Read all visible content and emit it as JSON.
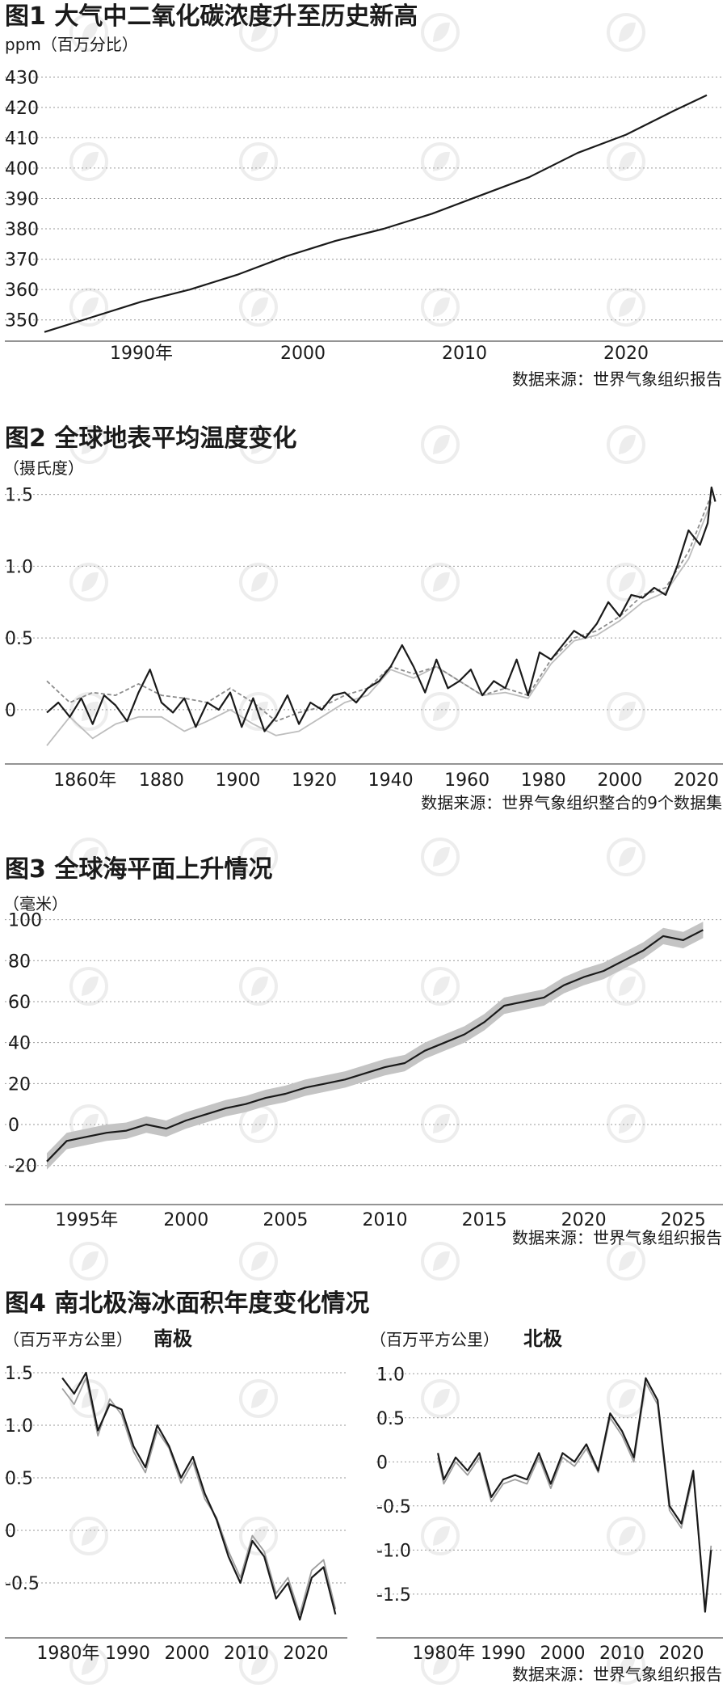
{
  "chart_data": [
    {
      "id": "co2",
      "type": "line",
      "title": "图1 大气中二氧化碳浓度升至历史新高",
      "unit_label": "ppm（百万分比）",
      "source": "数据来源：世界气象组织报告",
      "x_tick_labels": [
        "1990年",
        "2000",
        "2010",
        "2020"
      ],
      "x_tick_values": [
        1990,
        2000,
        2010,
        2020
      ],
      "y_tick_labels": [
        "430",
        "420",
        "410",
        "400",
        "390",
        "380",
        "370",
        "360",
        "350"
      ],
      "y_tick_values": [
        430,
        420,
        410,
        400,
        390,
        380,
        370,
        360,
        350
      ],
      "xlim": [
        1984,
        2026
      ],
      "ylim": [
        343,
        433
      ],
      "grid": true,
      "series": [
        {
          "color": "#1a1a1a",
          "x": [
            1984,
            1987,
            1990,
            1993,
            1996,
            1999,
            2002,
            2005,
            2008,
            2011,
            2014,
            2017,
            2020,
            2023,
            2025
          ],
          "y": [
            346,
            351,
            356,
            360,
            365,
            371,
            376,
            380,
            385,
            391,
            397,
            405,
            411,
            419,
            424
          ]
        }
      ]
    },
    {
      "id": "temp",
      "type": "line",
      "title": "图2 全球地表平均温度变化",
      "unit_label": "（摄氏度）",
      "source": "数据来源：世界气象组织整合的9个数据集",
      "x_tick_labels": [
        "1860年",
        "1880",
        "1900",
        "1920",
        "1940",
        "1960",
        "1980",
        "2000",
        "2020"
      ],
      "x_tick_values": [
        1860,
        1880,
        1900,
        1920,
        1940,
        1960,
        1980,
        2000,
        2020
      ],
      "y_tick_labels": [
        "1.5",
        "1.0",
        "0.5",
        "0"
      ],
      "y_tick_values": [
        1.5,
        1.0,
        0.5,
        0
      ],
      "xlim": [
        1850,
        2027
      ],
      "ylim": [
        -0.35,
        1.65
      ],
      "grid": true,
      "series": [
        {
          "color": "#1a1a1a",
          "x": [
            1850,
            1853,
            1856,
            1859,
            1862,
            1865,
            1868,
            1871,
            1874,
            1877,
            1880,
            1883,
            1886,
            1889,
            1892,
            1895,
            1898,
            1901,
            1904,
            1907,
            1910,
            1913,
            1916,
            1919,
            1922,
            1925,
            1928,
            1931,
            1934,
            1937,
            1940,
            1943,
            1946,
            1949,
            1952,
            1955,
            1958,
            1961,
            1964,
            1967,
            1970,
            1973,
            1976,
            1979,
            1982,
            1985,
            1988,
            1991,
            1994,
            1997,
            2000,
            2003,
            2006,
            2009,
            2012,
            2015,
            2018,
            2021,
            2023,
            2024,
            2025
          ],
          "y": [
            -0.02,
            0.05,
            -0.05,
            0.08,
            -0.1,
            0.1,
            0.03,
            -0.08,
            0.12,
            0.28,
            0.05,
            -0.02,
            0.08,
            -0.12,
            0.05,
            0.0,
            0.12,
            -0.12,
            0.08,
            -0.15,
            -0.05,
            0.1,
            -0.1,
            0.05,
            0.0,
            0.1,
            0.12,
            0.05,
            0.15,
            0.2,
            0.3,
            0.45,
            0.3,
            0.12,
            0.35,
            0.15,
            0.2,
            0.28,
            0.1,
            0.2,
            0.15,
            0.35,
            0.1,
            0.4,
            0.35,
            0.45,
            0.55,
            0.5,
            0.6,
            0.75,
            0.65,
            0.8,
            0.78,
            0.85,
            0.8,
            1.0,
            1.25,
            1.15,
            1.3,
            1.55,
            1.45
          ]
        },
        {
          "color": "#8c8c8c",
          "x": [
            1850,
            1856,
            1862,
            1868,
            1874,
            1880,
            1886,
            1892,
            1898,
            1904,
            1910,
            1916,
            1922,
            1928,
            1934,
            1940,
            1946,
            1952,
            1958,
            1964,
            1970,
            1976,
            1982,
            1988,
            1994,
            2000,
            2006,
            2012,
            2018,
            2024
          ],
          "y": [
            0.2,
            0.05,
            0.12,
            0.1,
            0.18,
            0.1,
            0.08,
            0.05,
            0.15,
            0.05,
            -0.08,
            -0.02,
            0.02,
            0.1,
            0.15,
            0.3,
            0.25,
            0.3,
            0.2,
            0.1,
            0.15,
            0.1,
            0.35,
            0.5,
            0.55,
            0.65,
            0.8,
            0.85,
            1.1,
            1.5
          ]
        },
        {
          "color": "#bdbdbd",
          "x": [
            1850,
            1856,
            1862,
            1868,
            1874,
            1880,
            1886,
            1892,
            1898,
            1904,
            1910,
            1916,
            1922,
            1928,
            1934,
            1940,
            1946,
            1952,
            1958,
            1964,
            1970,
            1976,
            1982,
            1988,
            1994,
            2000,
            2006,
            2012,
            2018,
            2024
          ],
          "y": [
            -0.25,
            -0.05,
            -0.2,
            -0.1,
            -0.05,
            -0.05,
            -0.15,
            -0.08,
            0.0,
            -0.1,
            -0.18,
            -0.15,
            -0.05,
            0.05,
            0.1,
            0.28,
            0.22,
            0.3,
            0.2,
            0.1,
            0.12,
            0.08,
            0.32,
            0.48,
            0.52,
            0.62,
            0.75,
            0.82,
            1.05,
            1.45
          ]
        }
      ]
    },
    {
      "id": "sea",
      "type": "area",
      "title": "图3 全球海平面上升情况",
      "unit_label": "（毫米）",
      "source": "数据来源：世界气象组织报告",
      "x_tick_labels": [
        "1995年",
        "2000",
        "2005",
        "2010",
        "2015",
        "2020",
        "2025"
      ],
      "x_tick_values": [
        1995,
        2000,
        2005,
        2010,
        2015,
        2020,
        2025
      ],
      "y_tick_labels": [
        "100",
        "80",
        "60",
        "40",
        "20",
        "0",
        "-20"
      ],
      "y_tick_values": [
        100,
        80,
        60,
        40,
        20,
        0,
        -20
      ],
      "xlim": [
        1993,
        2027
      ],
      "ylim": [
        -28,
        103
      ],
      "grid": true,
      "band_color": "#c4c4c4",
      "band_half_width": 4,
      "series": [
        {
          "color": "#1a1a1a",
          "x": [
            1993,
            1994,
            1995,
            1996,
            1997,
            1998,
            1999,
            2000,
            2001,
            2002,
            2003,
            2004,
            2005,
            2006,
            2007,
            2008,
            2009,
            2010,
            2011,
            2012,
            2013,
            2014,
            2015,
            2016,
            2017,
            2018,
            2019,
            2020,
            2021,
            2022,
            2023,
            2024,
            2025,
            2026
          ],
          "y": [
            -18,
            -8,
            -6,
            -4,
            -3,
            0,
            -2,
            2,
            5,
            8,
            10,
            13,
            15,
            18,
            20,
            22,
            25,
            28,
            30,
            36,
            40,
            44,
            50,
            58,
            60,
            62,
            68,
            72,
            75,
            80,
            85,
            92,
            90,
            95
          ]
        }
      ]
    },
    {
      "id": "antarctic",
      "type": "line",
      "title": "图4 南北极海冰面积年度变化情况",
      "unit_label": "（百万平方公里）",
      "subtitle": "南极",
      "x_tick_labels": [
        "1980年",
        "1990",
        "2000",
        "2010",
        "2020"
      ],
      "x_tick_values": [
        1980,
        1990,
        2000,
        2010,
        2020
      ],
      "y_tick_labels": [
        "1.5",
        "1.0",
        "0.5",
        "0",
        "-0.5"
      ],
      "y_tick_values": [
        1.5,
        1.0,
        0.5,
        0,
        -0.5
      ],
      "xlim": [
        1976,
        2027
      ],
      "ylim": [
        -0.9,
        1.7
      ],
      "grid": true,
      "series": [
        {
          "color": "#1a1a1a",
          "x": [
            1979,
            1981,
            1983,
            1985,
            1987,
            1989,
            1991,
            1993,
            1995,
            1997,
            1999,
            2001,
            2003,
            2005,
            2007,
            2009,
            2011,
            2013,
            2015,
            2017,
            2019,
            2021,
            2023,
            2025
          ],
          "y": [
            1.45,
            1.3,
            1.5,
            0.95,
            1.2,
            1.15,
            0.8,
            0.6,
            1.0,
            0.8,
            0.5,
            0.7,
            0.35,
            0.1,
            -0.25,
            -0.5,
            -0.1,
            -0.25,
            -0.65,
            -0.5,
            -0.85,
            -0.45,
            -0.35,
            -0.8
          ]
        },
        {
          "color": "#9e9e9e",
          "x": [
            1979,
            1981,
            1983,
            1985,
            1987,
            1989,
            1991,
            1993,
            1995,
            1997,
            1999,
            2001,
            2003,
            2005,
            2007,
            2009,
            2011,
            2013,
            2015,
            2017,
            2019,
            2021,
            2023,
            2025
          ],
          "y": [
            1.35,
            1.2,
            1.45,
            0.9,
            1.25,
            1.1,
            0.75,
            0.55,
            0.95,
            0.78,
            0.45,
            0.65,
            0.3,
            0.12,
            -0.2,
            -0.45,
            -0.05,
            -0.2,
            -0.6,
            -0.45,
            -0.8,
            -0.38,
            -0.28,
            -0.75
          ]
        }
      ]
    },
    {
      "id": "arctic",
      "type": "line",
      "unit_label": "（百万平方公里）",
      "subtitle": "北极",
      "source": "数据来源：世界气象组织报告",
      "x_tick_labels": [
        "1980年",
        "1990",
        "2000",
        "2010",
        "2020"
      ],
      "x_tick_values": [
        1980,
        1990,
        2000,
        2010,
        2020
      ],
      "y_tick_labels": [
        "1.0",
        "0.5",
        "0",
        "-0.5",
        "-1.0",
        "-1.5"
      ],
      "y_tick_values": [
        1.0,
        0.5,
        0,
        -0.5,
        -1.0,
        -1.5
      ],
      "xlim": [
        1976,
        2027
      ],
      "ylim": [
        -1.85,
        1.25
      ],
      "grid": true,
      "series": [
        {
          "color": "#1a1a1a",
          "x": [
            1979,
            1980,
            1982,
            1984,
            1986,
            1988,
            1990,
            1992,
            1994,
            1996,
            1998,
            2000,
            2002,
            2004,
            2006,
            2008,
            2010,
            2012,
            2014,
            2016,
            2018,
            2020,
            2022,
            2024,
            2025
          ],
          "y": [
            0.1,
            -0.2,
            0.05,
            -0.1,
            0.1,
            -0.4,
            -0.2,
            -0.15,
            -0.2,
            0.1,
            -0.25,
            0.1,
            0.0,
            0.2,
            -0.1,
            0.55,
            0.35,
            0.05,
            0.95,
            0.7,
            -0.5,
            -0.7,
            -0.1,
            -1.7,
            -1.0
          ]
        },
        {
          "color": "#9e9e9e",
          "x": [
            1979,
            1980,
            1982,
            1984,
            1986,
            1988,
            1990,
            1992,
            1994,
            1996,
            1998,
            2000,
            2002,
            2004,
            2006,
            2008,
            2010,
            2012,
            2014,
            2016,
            2018,
            2020,
            2022,
            2024,
            2025
          ],
          "y": [
            0.05,
            -0.25,
            0.0,
            -0.15,
            0.05,
            -0.45,
            -0.25,
            -0.2,
            -0.25,
            0.05,
            -0.3,
            0.05,
            -0.05,
            0.15,
            -0.12,
            0.5,
            0.3,
            0.0,
            0.9,
            0.65,
            -0.55,
            -0.75,
            -0.15,
            -1.65,
            -0.95
          ]
        }
      ]
    }
  ]
}
